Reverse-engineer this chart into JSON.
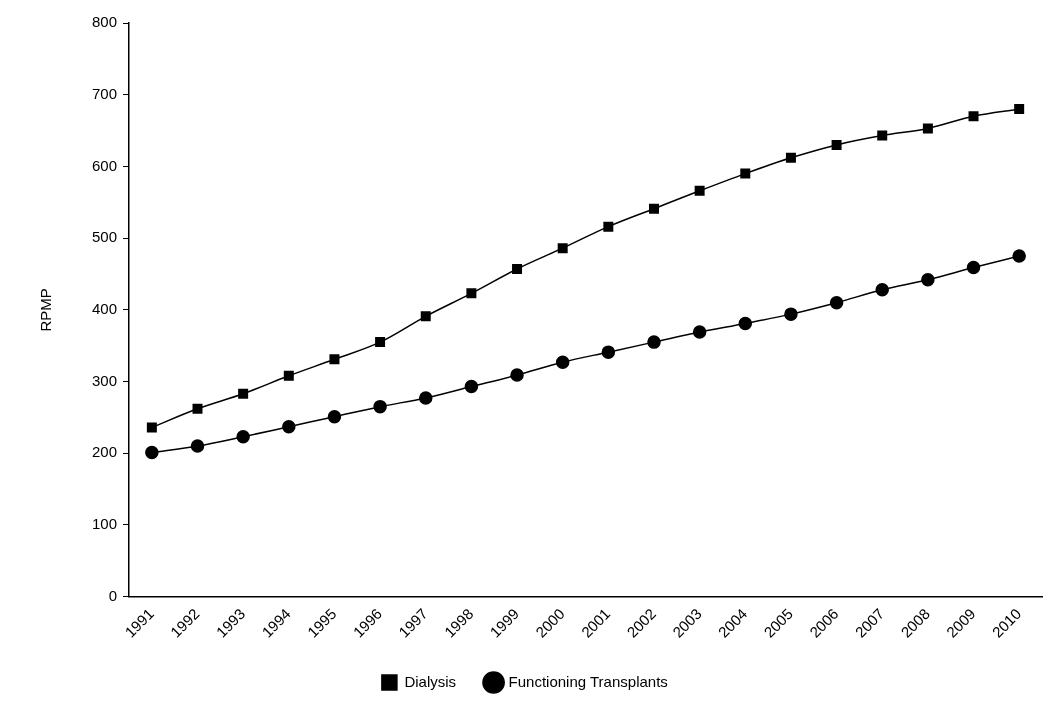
{
  "chart_data": {
    "type": "line",
    "ylabel": "RPMP",
    "categories": [
      "1991",
      "1992",
      "1993",
      "1994",
      "1995",
      "1996",
      "1997",
      "1998",
      "1999",
      "2000",
      "2001",
      "2002",
      "2003",
      "2004",
      "2005",
      "2006",
      "2007",
      "2008",
      "2009",
      "2010"
    ],
    "series": [
      {
        "name": "Dialysis",
        "color": "#000000",
        "marker": "square",
        "values": [
          236,
          262,
          283,
          308,
          331,
          355,
          391,
          423,
          457,
          486,
          516,
          541,
          566,
          590,
          612,
          630,
          643,
          653,
          670,
          680
        ]
      },
      {
        "name": "Functioning Transplants",
        "color": "#000000",
        "marker": "circle",
        "values": [
          201,
          210,
          223,
          237,
          251,
          265,
          277,
          293,
          309,
          327,
          341,
          355,
          369,
          381,
          394,
          410,
          428,
          442,
          459,
          475
        ]
      }
    ],
    "ylim": [
      0,
      800
    ],
    "yticks": [
      0,
      100,
      200,
      300,
      400,
      500,
      600,
      700,
      800
    ],
    "grid": false,
    "legend": "bottom"
  }
}
